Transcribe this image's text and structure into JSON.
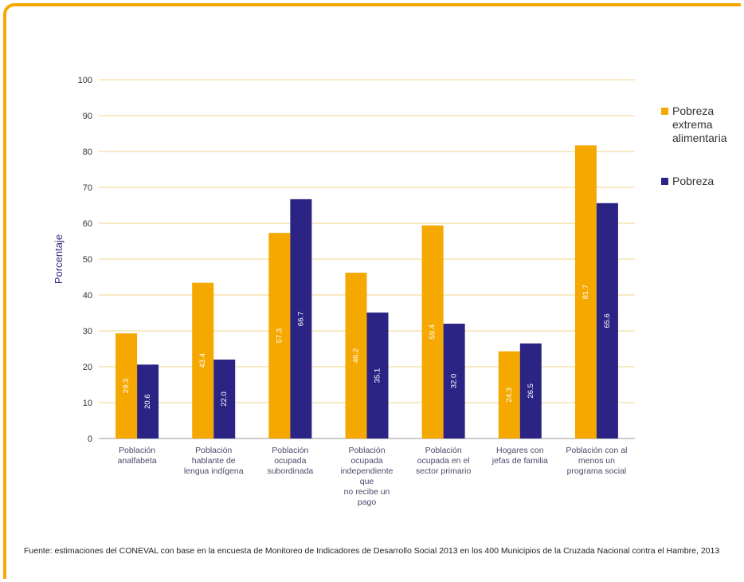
{
  "chart_data": {
    "type": "bar",
    "ylabel": "Porcentaje",
    "ylim": [
      0,
      100
    ],
    "yticks": [
      0,
      10,
      20,
      30,
      40,
      50,
      60,
      70,
      80,
      90,
      100
    ],
    "grid": true,
    "legend_position": "right",
    "categories": [
      [
        "Población",
        "analfabeta"
      ],
      [
        "Población",
        "hablante de",
        "lengua indígena"
      ],
      [
        "Población",
        "ocupada",
        "subordinada"
      ],
      [
        "Población",
        "ocupada",
        "independiente",
        "que",
        "no recibe un",
        "pago"
      ],
      [
        "Población",
        "ocupada en el",
        "sector primario"
      ],
      [
        "Hogares con",
        "jefas de familia"
      ],
      [
        "Población con al",
        "menos un",
        "programa social"
      ]
    ],
    "series": [
      {
        "name": [
          "Pobreza",
          "extrema",
          "alimentaria"
        ],
        "color": "#f5a800",
        "values": [
          29.3,
          43.4,
          57.3,
          46.2,
          59.4,
          24.3,
          81.7
        ],
        "labels": [
          "29.3",
          "43.4",
          "57.3",
          "46.2",
          "59.4",
          "24.3",
          "81.7"
        ]
      },
      {
        "name": [
          "Pobreza"
        ],
        "color": "#2b2485",
        "values": [
          20.6,
          22.0,
          66.7,
          35.1,
          32.0,
          26.5,
          65.6
        ],
        "labels": [
          "20.6",
          "22.0",
          "66.7",
          "35.1",
          "32.0",
          "26.5",
          "65.6"
        ]
      }
    ]
  },
  "source_note": "Fuente: estimaciones del CONEVAL con base en la encuesta de Monitoreo de Indicadores de Desarrollo Social 2013 en los 400 Municipios de la Cruzada Nacional contra el Hambre, 2013"
}
